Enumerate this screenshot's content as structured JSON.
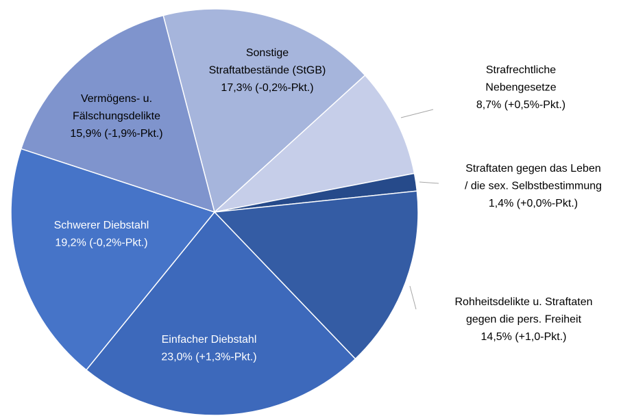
{
  "chart_data": {
    "type": "pie",
    "categories": [
      [
        "Sonstige",
        "Straftatbestände (StGB)"
      ],
      [
        "Strafrechtliche",
        "Nebengesetze"
      ],
      [
        "Straftaten gegen das Leben",
        "/ die sex. Selbstbestimmung"
      ],
      [
        "Rohheitsdelikte u. Straftaten",
        "gegen die pers. Freiheit"
      ],
      [
        "Einfacher Diebstahl"
      ],
      [
        "Schwerer Diebstahl"
      ],
      [
        "Vermögens- u.",
        "Fälschungsdelikte"
      ]
    ],
    "values": [
      17.3,
      8.7,
      1.4,
      14.5,
      23.0,
      19.2,
      15.9
    ],
    "value_labels": [
      "17,3% (-0,2%-Pkt.)",
      "8,7% (+0,5%-Pkt.)",
      "1,4% (+0,0%-Pkt.)",
      "14,5% (+1,0-Pkt.)",
      "23,0% (+1,3%-Pkt.)",
      "19,2% (-0,2%-Pkt.)",
      "15,9% (-1,9%-Pkt.)"
    ],
    "colors": [
      "#a6b5dc",
      "#c6cee9",
      "#264a8a",
      "#345ca4",
      "#3d69bb",
      "#4674c8",
      "#7f94cd"
    ]
  }
}
